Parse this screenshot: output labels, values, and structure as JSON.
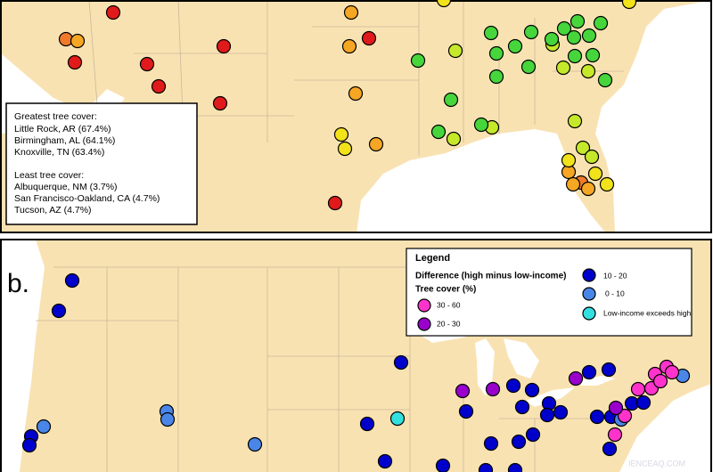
{
  "panel_a": {
    "greatest_heading": "Greatest tree cover:",
    "greatest": [
      "Little Rock, AR (67.4%)",
      "Birmingham, AL (64.1%)",
      "Knoxville, TN (63.4%)"
    ],
    "least_heading": "Least tree cover:",
    "least": [
      "Albuquerque, NM (3.7%)",
      "San Francisco-Oakland, CA (4.7%)",
      "Tucson, AZ (4.7%)"
    ]
  },
  "panel_b": {
    "label": "b.",
    "legend": {
      "title": "Legend",
      "difference_label": "Difference (high minus low-income)",
      "tree_cover_label": "Tree cover (%)",
      "items": [
        "30 - 60",
        "20 - 30",
        "10 - 20",
        "0 - 10",
        "Low-income exceeds high"
      ]
    }
  },
  "watermark": "IENCEAQ.COM"
}
